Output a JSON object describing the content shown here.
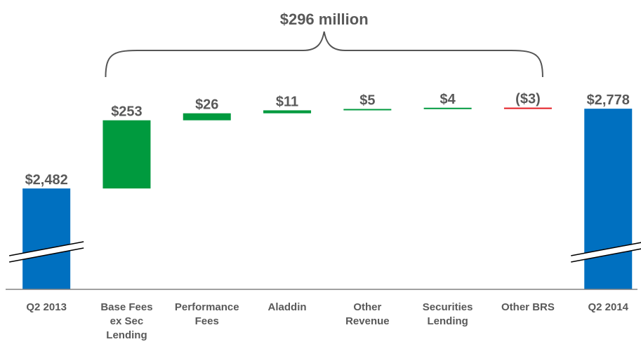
{
  "chart_data": {
    "type": "bar",
    "variant": "waterfall",
    "title": "",
    "xlabel": "",
    "ylabel": "",
    "y_axis": "broken",
    "grid": false,
    "legend": "none",
    "annotation": {
      "text": "$296 million",
      "spans": [
        "Base Fees ex Sec Lending",
        "Other BRS"
      ]
    },
    "categories": [
      {
        "label_lines": [
          "Q2 2013"
        ],
        "kind": "total",
        "value": 2482,
        "label": "$2,482",
        "color": "#0070C0"
      },
      {
        "label_lines": [
          "Base Fees",
          "ex Sec",
          "Lending"
        ],
        "kind": "delta",
        "value": 253,
        "label": "$253",
        "color": "#009A3E"
      },
      {
        "label_lines": [
          "Performance",
          "Fees"
        ],
        "kind": "delta",
        "value": 26,
        "label": "$26",
        "color": "#009A3E"
      },
      {
        "label_lines": [
          "Aladdin"
        ],
        "kind": "delta",
        "value": 11,
        "label": "$11",
        "color": "#009A3E"
      },
      {
        "label_lines": [
          "Other",
          "Revenue"
        ],
        "kind": "delta",
        "value": 5,
        "label": "$5",
        "color": "#009A3E"
      },
      {
        "label_lines": [
          "Securities",
          "Lending"
        ],
        "kind": "delta",
        "value": 4,
        "label": "$4",
        "color": "#009A3E"
      },
      {
        "label_lines": [
          "Other BRS"
        ],
        "kind": "delta",
        "value": -3,
        "label": "($3)",
        "color": "#E31B23"
      },
      {
        "label_lines": [
          "Q2 2014"
        ],
        "kind": "total",
        "value": 2778,
        "label": "$2,778",
        "color": "#0070C0"
      }
    ]
  }
}
